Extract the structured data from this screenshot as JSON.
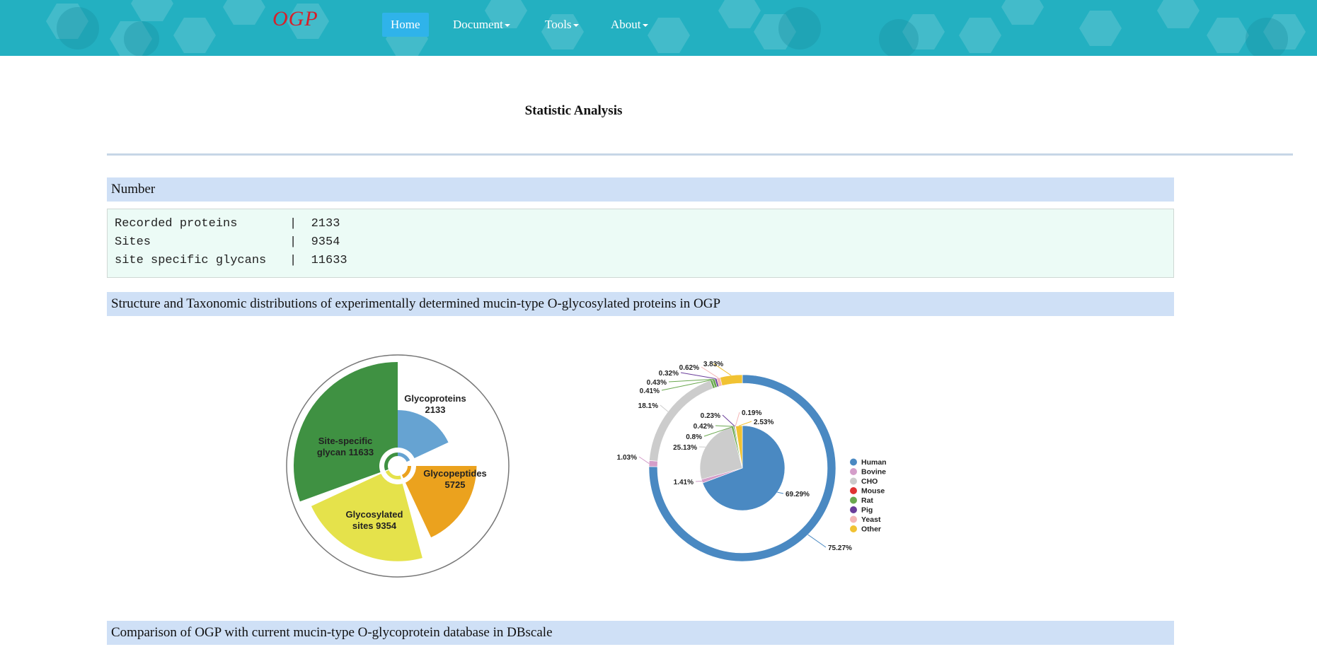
{
  "nav": {
    "brand": "OGP",
    "items": [
      {
        "label": "Home",
        "active": true
      },
      {
        "label": "Document",
        "dropdown": true
      },
      {
        "label": "Tools",
        "dropdown": true
      },
      {
        "label": "About",
        "dropdown": true
      }
    ]
  },
  "page_title": "Statistic Analysis",
  "sections": {
    "number": "Number",
    "structure": "Structure and Taxonomic distributions of experimentally determined mucin-type O-glycosylated proteins in OGP",
    "comparison": "Comparison of OGP with current mucin-type O-glycoprotein database in DBscale"
  },
  "stats": [
    {
      "label": "Recorded proteins",
      "value": "2133"
    },
    {
      "label": "Sites",
      "value": "9354"
    },
    {
      "label": "site specific glycans",
      "value": "11633"
    }
  ],
  "colors": {
    "nav_bg": "#23b0c1",
    "nav_active": "#2fb3ea",
    "brand": "#d6202a",
    "section_bg": "#cfe0f6",
    "stats_bg": "#ecfbf6"
  },
  "chart_data": [
    {
      "type": "pie",
      "variant": "rose",
      "slices": [
        {
          "label": "Glycoproteins",
          "value": 2133,
          "color": "#66a3d2"
        },
        {
          "label": "Glycopeptides",
          "value": 5725,
          "color": "#eba21e"
        },
        {
          "label": "Glycosylated sites",
          "value": 9354,
          "color": "#e5e24b"
        },
        {
          "label": "Site-specific glycan",
          "value": 11633,
          "color": "#3f9142"
        }
      ],
      "labels": [
        {
          "line1": "Glycoproteins",
          "line2": "2133"
        },
        {
          "line1": "Glycopeptides",
          "line2": "5725"
        },
        {
          "line1": "Glycosylated",
          "line2": "sites 9354"
        },
        {
          "line1": "Site-specific",
          "line2": "glycan 11633"
        }
      ]
    },
    {
      "type": "pie",
      "variant": "nested-donut",
      "legend": [
        {
          "name": "Human",
          "color": "#4a89c2"
        },
        {
          "name": "Bovine",
          "color": "#d49ec9"
        },
        {
          "name": "CHO",
          "color": "#cccccc"
        },
        {
          "name": "Mouse",
          "color": "#e03333"
        },
        {
          "name": "Rat",
          "color": "#6aa84f"
        },
        {
          "name": "Pig",
          "color": "#6a3d9a"
        },
        {
          "name": "Yeast",
          "color": "#f4b6b6"
        },
        {
          "name": "Other",
          "color": "#f1c232"
        }
      ],
      "legend_position": "right",
      "outer_ring": [
        {
          "name": "Human",
          "value": 75.27,
          "label": "75.27%"
        },
        {
          "name": "Bovine",
          "value": 1.03,
          "label": "1.03%"
        },
        {
          "name": "CHO",
          "value": 18.1,
          "label": "18.1%"
        },
        {
          "name": "Mouse",
          "value": 0.0,
          "label": ""
        },
        {
          "name": "Rat",
          "value": 0.41,
          "label": "0.41%"
        },
        {
          "name": "Rat",
          "value": 0.43,
          "label": "0.43%"
        },
        {
          "name": "Pig",
          "value": 0.32,
          "label": "0.32%"
        },
        {
          "name": "Yeast",
          "value": 0.62,
          "label": "0.62%"
        },
        {
          "name": "Other",
          "value": 3.83,
          "label": "3.83%"
        }
      ],
      "inner_pie": [
        {
          "name": "Human",
          "value": 69.29,
          "label": "69.29%"
        },
        {
          "name": "Bovine",
          "value": 1.41,
          "label": "1.41%"
        },
        {
          "name": "CHO",
          "value": 25.13,
          "label": "25.13%"
        },
        {
          "name": "Rat",
          "value": 0.8,
          "label": "0.8%"
        },
        {
          "name": "Rat",
          "value": 0.42,
          "label": "0.42%"
        },
        {
          "name": "Pig",
          "value": 0.23,
          "label": "0.23%"
        },
        {
          "name": "Yeast",
          "value": 0.19,
          "label": "0.19%"
        },
        {
          "name": "Other",
          "value": 2.53,
          "label": "2.53%"
        }
      ]
    }
  ]
}
